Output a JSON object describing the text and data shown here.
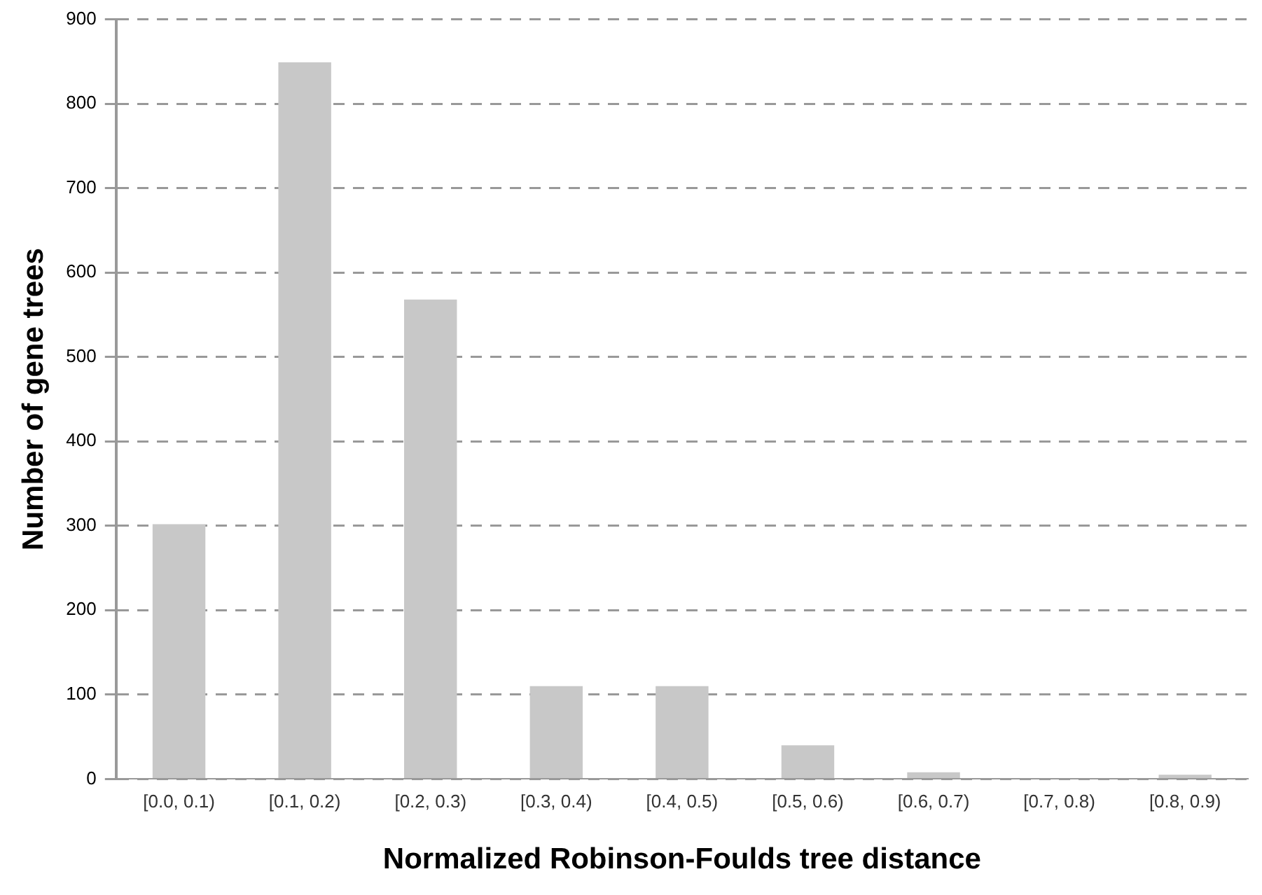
{
  "chart_data": {
    "type": "bar",
    "xlabel": "Normalized Robinson-Foulds tree distance",
    "ylabel": "Number of gene trees",
    "categories": [
      "[0.0, 0.1)",
      "[0.1, 0.2)",
      "[0.2, 0.3)",
      "[0.3, 0.4)",
      "[0.4, 0.5)",
      "[0.5, 0.6)",
      "[0.6, 0.7)",
      "[0.7, 0.8)",
      "[0.8, 0.9)"
    ],
    "values": [
      302,
      849,
      568,
      110,
      110,
      40,
      8,
      null,
      5
    ],
    "color": "#c8c8c8",
    "ylim": [
      0,
      900
    ],
    "yticks": [
      0,
      100,
      200,
      300,
      400,
      500,
      600,
      700,
      800,
      900
    ],
    "grid": "y",
    "legend": false
  }
}
